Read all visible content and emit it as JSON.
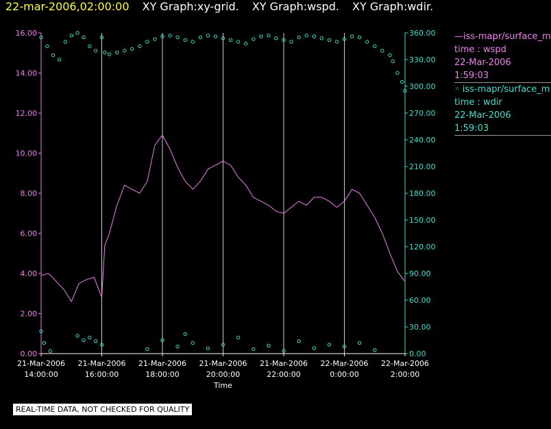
{
  "header": {
    "date": "22-mar-2006,02:00:00",
    "graphs": [
      "XY Graph:xy-grid.",
      "XY Graph:wspd.",
      "XY Graph:wdir."
    ]
  },
  "legend": {
    "wspd": {
      "series": "—iss-mapr/surface_m",
      "field": "time : wspd",
      "date": "22-Mar-2006",
      "time": "1:59:03"
    },
    "wdir": {
      "series": "◦ iss-mapr/surface_m",
      "field": "time : wdir",
      "date": "22-Mar-2006",
      "time": "1:59:03"
    }
  },
  "qc_note": "REAL-TIME DATA, NOT CHECKED FOR QUALITY",
  "colors": {
    "wspd": "#ee82ee",
    "wdir": "#40e0d0",
    "axis_left": "#ee82ee",
    "axis_right": "#40e0d0",
    "date": "#ffff33",
    "grid": "#cfcfcf"
  },
  "chart_data": {
    "type": "line",
    "xlabel": "Time",
    "x_ticks": [
      [
        "21-Mar-2006",
        "14:00:00"
      ],
      [
        "21-Mar-2006",
        "16:00:00"
      ],
      [
        "21-Mar-2006",
        "18:00:00"
      ],
      [
        "21-Mar-2006",
        "20:00:00"
      ],
      [
        "21-Mar-2006",
        "22:00:00"
      ],
      [
        "22-Mar-2006",
        "0:00:00"
      ],
      [
        "22-Mar-2006",
        "2:00:00"
      ]
    ],
    "x_range_hours": [
      14,
      26
    ],
    "y_left": {
      "ticks": [
        "0.00",
        "2.00",
        "4.00",
        "6.00",
        "8.00",
        "10.00",
        "12.00",
        "14.00",
        "16.00"
      ],
      "range": [
        0,
        16
      ]
    },
    "y_right": {
      "ticks": [
        "0.00",
        "30.00",
        "60.00",
        "90.00",
        "120.00",
        "150.00",
        "180.00",
        "210.00",
        "240.00",
        "270.00",
        "300.00",
        "330.00",
        "360.00"
      ],
      "range": [
        0,
        360
      ]
    },
    "grid_vertical": true,
    "series": [
      {
        "name": "iss-mapr/surface_m wspd",
        "axis": "left",
        "style": "line",
        "x": [
          14.0,
          14.25,
          14.5,
          14.75,
          15.0,
          15.25,
          15.5,
          15.75,
          16.0,
          16.1,
          16.25,
          16.5,
          16.75,
          17.0,
          17.25,
          17.5,
          17.75,
          18.0,
          18.25,
          18.5,
          18.75,
          19.0,
          19.25,
          19.5,
          19.75,
          20.0,
          20.25,
          20.5,
          20.75,
          21.0,
          21.25,
          21.5,
          21.75,
          22.0,
          22.25,
          22.5,
          22.75,
          23.0,
          23.25,
          23.5,
          23.75,
          24.0,
          24.25,
          24.5,
          24.75,
          25.0,
          25.25,
          25.5,
          25.75,
          26.0
        ],
        "y": [
          3.9,
          4.0,
          3.6,
          3.2,
          2.6,
          3.5,
          3.7,
          3.8,
          2.8,
          5.4,
          6.0,
          7.4,
          8.4,
          8.2,
          8.0,
          8.6,
          10.4,
          10.9,
          10.2,
          9.3,
          8.6,
          8.2,
          8.6,
          9.2,
          9.4,
          9.6,
          9.4,
          8.8,
          8.4,
          7.8,
          7.6,
          7.4,
          7.1,
          7.0,
          7.3,
          7.6,
          7.4,
          7.8,
          7.8,
          7.6,
          7.3,
          7.6,
          8.2,
          8.0,
          7.4,
          6.8,
          6.0,
          5.0,
          4.1,
          3.6
        ]
      },
      {
        "name": "iss-mapr/surface_m wdir",
        "axis": "right",
        "style": "points",
        "x": [
          14.0,
          14.2,
          14.4,
          14.6,
          14.8,
          15.0,
          15.2,
          15.4,
          15.6,
          15.8,
          16.0,
          16.1,
          16.25,
          16.5,
          16.75,
          17.0,
          17.25,
          17.5,
          17.75,
          18.0,
          18.25,
          18.5,
          18.75,
          19.0,
          19.25,
          19.5,
          19.75,
          20.0,
          20.25,
          20.5,
          20.75,
          21.0,
          21.25,
          21.5,
          21.75,
          22.0,
          22.25,
          22.5,
          22.75,
          23.0,
          23.25,
          23.5,
          23.75,
          24.0,
          24.25,
          24.5,
          24.75,
          25.0,
          25.25,
          25.5,
          25.6,
          25.75,
          25.9,
          26.0
        ],
        "y": [
          355,
          345,
          335,
          330,
          350,
          357,
          360,
          355,
          345,
          340,
          355,
          338,
          336,
          338,
          340,
          342,
          345,
          350,
          353,
          356,
          357,
          355,
          352,
          350,
          355,
          357,
          356,
          354,
          352,
          350,
          348,
          353,
          356,
          357,
          354,
          352,
          350,
          355,
          357,
          356,
          354,
          352,
          350,
          353,
          356,
          355,
          350,
          345,
          340,
          335,
          328,
          315,
          305,
          295
        ]
      },
      {
        "name": "iss-mapr/surface_m wdir (near 0)",
        "axis": "right",
        "style": "points",
        "x": [
          14.0,
          14.1,
          14.3,
          15.2,
          15.4,
          15.6,
          15.8,
          16.0,
          17.5,
          18.0,
          18.5,
          18.75,
          19.0,
          19.5,
          20.0,
          20.5,
          21.0,
          21.5,
          22.0,
          22.5,
          23.0,
          23.5,
          24.0,
          24.5,
          25.0
        ],
        "y": [
          25,
          12,
          3,
          20,
          15,
          18,
          14,
          10,
          5,
          15,
          8,
          22,
          12,
          6,
          10,
          18,
          5,
          9,
          3,
          14,
          6,
          10,
          8,
          12,
          4
        ]
      }
    ]
  }
}
